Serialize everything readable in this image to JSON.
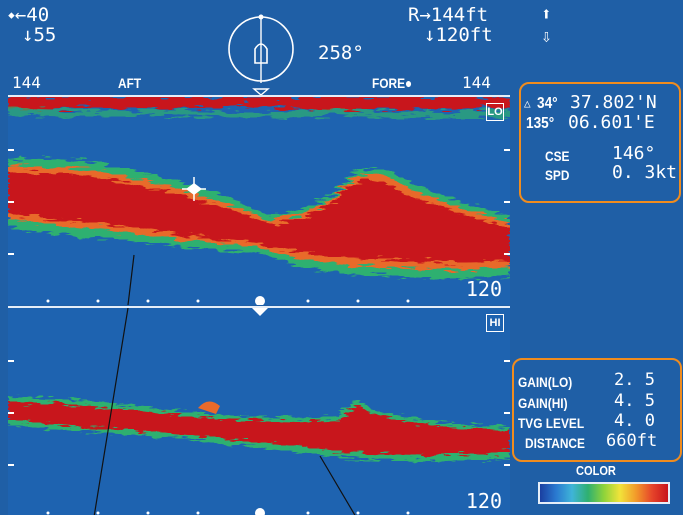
{
  "header": {
    "left_top": "⬩←40",
    "left_bottom": "↓55",
    "heading": "258°",
    "right_top": "R→144ft",
    "right_bottom": "↓120ft",
    "arrow_up": "⬆",
    "arrow_down": "⇩"
  },
  "scale_bar": {
    "left_value": "144",
    "aft_label": "AFT",
    "fore_label": "FORE●",
    "right_value": "144"
  },
  "panel_lo": {
    "badge": "LO",
    "range": "120"
  },
  "panel_hi": {
    "badge": "HI",
    "range": "120"
  },
  "position": {
    "lat_prefix": "△",
    "lat_deg": "34°",
    "lat_min": "37.802'N",
    "lon_deg": "135°",
    "lon_min": "06.601'E"
  },
  "nav": {
    "cse_label": "CSE",
    "cse_value": "146°",
    "spd_label": "SPD",
    "spd_value": "0. 3kt"
  },
  "settings": {
    "gain_lo_label": "GAIN(LO)",
    "gain_lo_value": "2. 5",
    "gain_hi_label": "GAIN(HI)",
    "gain_hi_value": "4. 5",
    "tvg_label": "TVG LEVEL",
    "tvg_value": "4. 0",
    "distance_label": "DISTANCE",
    "distance_value": "660ft"
  },
  "color_label": "COLOR",
  "colors": {
    "screen_bg": "#1f5fa6",
    "echo_strong": "#c8141c",
    "echo_mid": "#e86a2a",
    "echo_weak": "#2fb070",
    "frame_orange": "#f08c1e"
  }
}
